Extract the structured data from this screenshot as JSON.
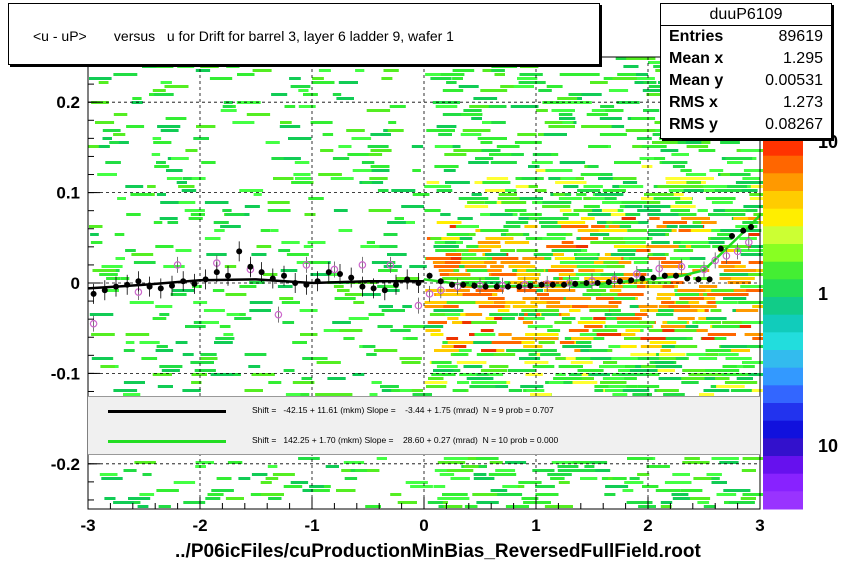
{
  "title": "<u - uP>       versus   u for Drift for barrel 3, layer 6 ladder 9, wafer 1",
  "stats": {
    "name": "duuP6109",
    "rows": [
      {
        "label": "Entries",
        "value": "89619"
      },
      {
        "label": "Mean x",
        "value": "1.295"
      },
      {
        "label": "Mean y",
        "value": "0.00531"
      },
      {
        "label": "RMS x",
        "value": "1.273"
      },
      {
        "label": "RMS y",
        "value": "0.08267"
      }
    ]
  },
  "legend": [
    {
      "color": "#000000",
      "text": "Shift =   -42.15 + 11.61 (mkm) Slope =    -3.44 + 1.75 (mrad)  N = 9 prob = 0.707"
    },
    {
      "color": "#22dd22",
      "text": "Shift =   142.25 + 1.70 (mkm) Slope =    28.60 + 0.27 (mrad)  N = 10 prob = 0.000"
    }
  ],
  "filename": "../P06icFiles/cuProductionMinBias_ReversedFullField.root",
  "colors": {
    "black_fit": "#000000",
    "green_fit": "#22dd22",
    "open_markers": "#cc66cc"
  },
  "chart_data": {
    "type": "heatmap",
    "title": "<u - uP>       versus   u for Drift for barrel 3, layer 6 ladder 9, wafer 1",
    "xlabel": "../P06icFiles/cuProductionMinBias_ReversedFullField.root",
    "ylabel": "",
    "xlim": [
      -3,
      3
    ],
    "ylim": [
      -0.25,
      0.25
    ],
    "x_ticks": [
      "-3",
      "-2",
      "-1",
      "0",
      "1",
      "2",
      "3"
    ],
    "y_ticks": [
      "-0.2",
      "-0.1",
      "0",
      "0.1",
      "0.2"
    ],
    "z_scale_ticks": [
      "10",
      "1",
      "10"
    ],
    "grid": true,
    "profile_black": {
      "x": [
        -2.95,
        -2.85,
        -2.75,
        -2.65,
        -2.55,
        -2.45,
        -2.35,
        -2.25,
        -2.15,
        -2.05,
        -1.95,
        -1.85,
        -1.75,
        -1.65,
        -1.55,
        -1.45,
        -1.35,
        -1.25,
        -1.15,
        -1.05,
        -0.95,
        -0.85,
        -0.75,
        -0.65,
        -0.55,
        -0.45,
        -0.35,
        -0.25,
        -0.15,
        -0.05,
        0.05,
        0.15,
        0.25,
        0.35,
        0.45,
        0.55,
        0.65,
        0.75,
        0.85,
        0.95,
        1.05,
        1.15,
        1.25,
        1.35,
        1.45,
        1.55,
        1.65,
        1.75,
        1.85,
        1.95,
        2.05,
        2.15,
        2.25,
        2.35,
        2.45,
        2.55,
        2.65,
        2.75,
        2.85,
        2.92
      ],
      "y": [
        -0.012,
        -0.008,
        -0.004,
        -0.002,
        0.002,
        -0.004,
        -0.006,
        -0.003,
        0.002,
        -0.001,
        0.004,
        0.012,
        0.008,
        0.035,
        0.018,
        0.012,
        0.005,
        0.008,
        0.0,
        -0.002,
        0.002,
        0.012,
        0.01,
        0.006,
        -0.004,
        -0.006,
        -0.008,
        -0.002,
        0.004,
        0.0,
        0.008,
        0.002,
        -0.002,
        -0.002,
        -0.003,
        -0.004,
        -0.004,
        -0.004,
        -0.004,
        -0.003,
        -0.002,
        -0.002,
        -0.002,
        -0.001,
        0.0,
        0.0,
        0.001,
        0.002,
        0.003,
        0.005,
        0.006,
        0.008,
        0.008,
        0.005,
        0.004,
        0.004,
        0.038,
        0.052,
        0.058,
        0.062
      ]
    },
    "profile_open": {
      "x": [
        -2.95,
        -2.55,
        -2.2,
        -1.85,
        -1.55,
        -1.3,
        -1.05,
        -0.8,
        -0.55,
        -0.3,
        -0.05,
        0.05,
        0.15,
        0.3,
        0.5,
        0.7,
        0.9,
        1.1,
        1.3,
        1.5,
        1.7,
        1.9,
        2.1,
        2.3,
        2.5,
        2.6,
        2.7,
        2.8,
        2.9
      ],
      "y": [
        -0.045,
        -0.01,
        0.02,
        0.022,
        0.015,
        -0.035,
        0.02,
        0.015,
        0.02,
        0.02,
        -0.025,
        -0.012,
        -0.008,
        -0.004,
        -0.003,
        -0.003,
        -0.002,
        -0.001,
        0.0,
        0.002,
        0.004,
        0.01,
        0.016,
        0.018,
        0.015,
        0.025,
        0.03,
        0.035,
        0.045
      ]
    },
    "fit_black": {
      "x": [
        -3.0,
        -2.5,
        -2.0,
        -1.5,
        -1.0,
        -0.5,
        0.0
      ],
      "y": [
        -0.006,
        -0.002,
        0.003,
        0.004,
        0.0,
        0.002,
        0.002
      ]
    },
    "fit_green": {
      "x": [
        0.0,
        0.5,
        1.0,
        1.5,
        2.0,
        2.3,
        2.5,
        2.7,
        2.9,
        3.0
      ],
      "y": [
        0.004,
        -0.004,
        -0.003,
        -0.002,
        0.004,
        0.008,
        0.014,
        0.038,
        0.062,
        0.075
      ]
    }
  }
}
